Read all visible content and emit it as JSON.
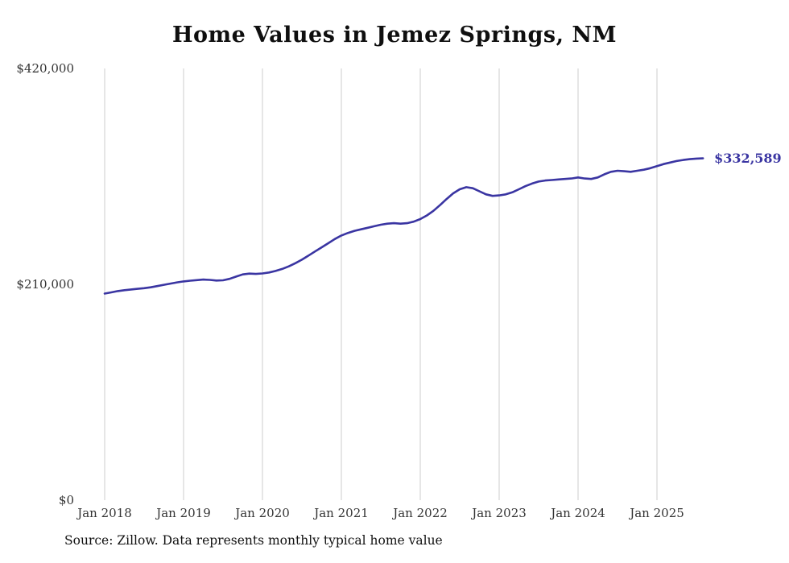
{
  "chart_data": {
    "type": "line",
    "title": "Home Values in Jemez Springs, NM",
    "xlabel": "",
    "ylabel": "",
    "ylim": [
      0,
      420000
    ],
    "grid": "vertical-gridlines-at-january",
    "legend": "none",
    "line_color": "#3a35a2",
    "y_ticks": [
      {
        "label": "$420,000",
        "value": 420000
      },
      {
        "label": "$210,000",
        "value": 210000
      },
      {
        "label": "$0",
        "value": 0
      }
    ],
    "x_tick_labels": [
      "Jan 2018",
      "Jan 2019",
      "Jan 2020",
      "Jan 2021",
      "Jan 2022",
      "Jan 2023",
      "Jan 2024",
      "Jan 2025"
    ],
    "series": [
      {
        "name": "Monthly typical home value",
        "start_month": "Jan 2018",
        "frequency": "monthly",
        "values": [
          201000,
          202200,
          203400,
          204300,
          205000,
          205600,
          206200,
          207100,
          208300,
          209500,
          210700,
          211900,
          212800,
          213500,
          214100,
          214600,
          214300,
          213700,
          213900,
          215300,
          217500,
          219600,
          220400,
          220100,
          220600,
          221500,
          223000,
          225000,
          227500,
          230500,
          234000,
          238000,
          242000,
          246000,
          250000,
          254000,
          257500,
          260000,
          262000,
          263500,
          265000,
          266500,
          268000,
          269000,
          269500,
          269000,
          269500,
          271000,
          273500,
          277000,
          281500,
          287000,
          293000,
          298500,
          302500,
          304500,
          303500,
          300500,
          297500,
          296000,
          296500,
          297500,
          299500,
          302500,
          305500,
          308000,
          310000,
          311000,
          311500,
          312000,
          312500,
          313000,
          314000,
          313000,
          312500,
          314000,
          317000,
          319500,
          320500,
          320000,
          319500,
          320500,
          321500,
          323000,
          325000,
          327000,
          328500,
          330000,
          331000,
          331800,
          332300,
          332589
        ]
      }
    ],
    "end_label": "$332,589",
    "last_value": 332589,
    "source": "Source: Zillow. Data represents monthly typical home value"
  }
}
